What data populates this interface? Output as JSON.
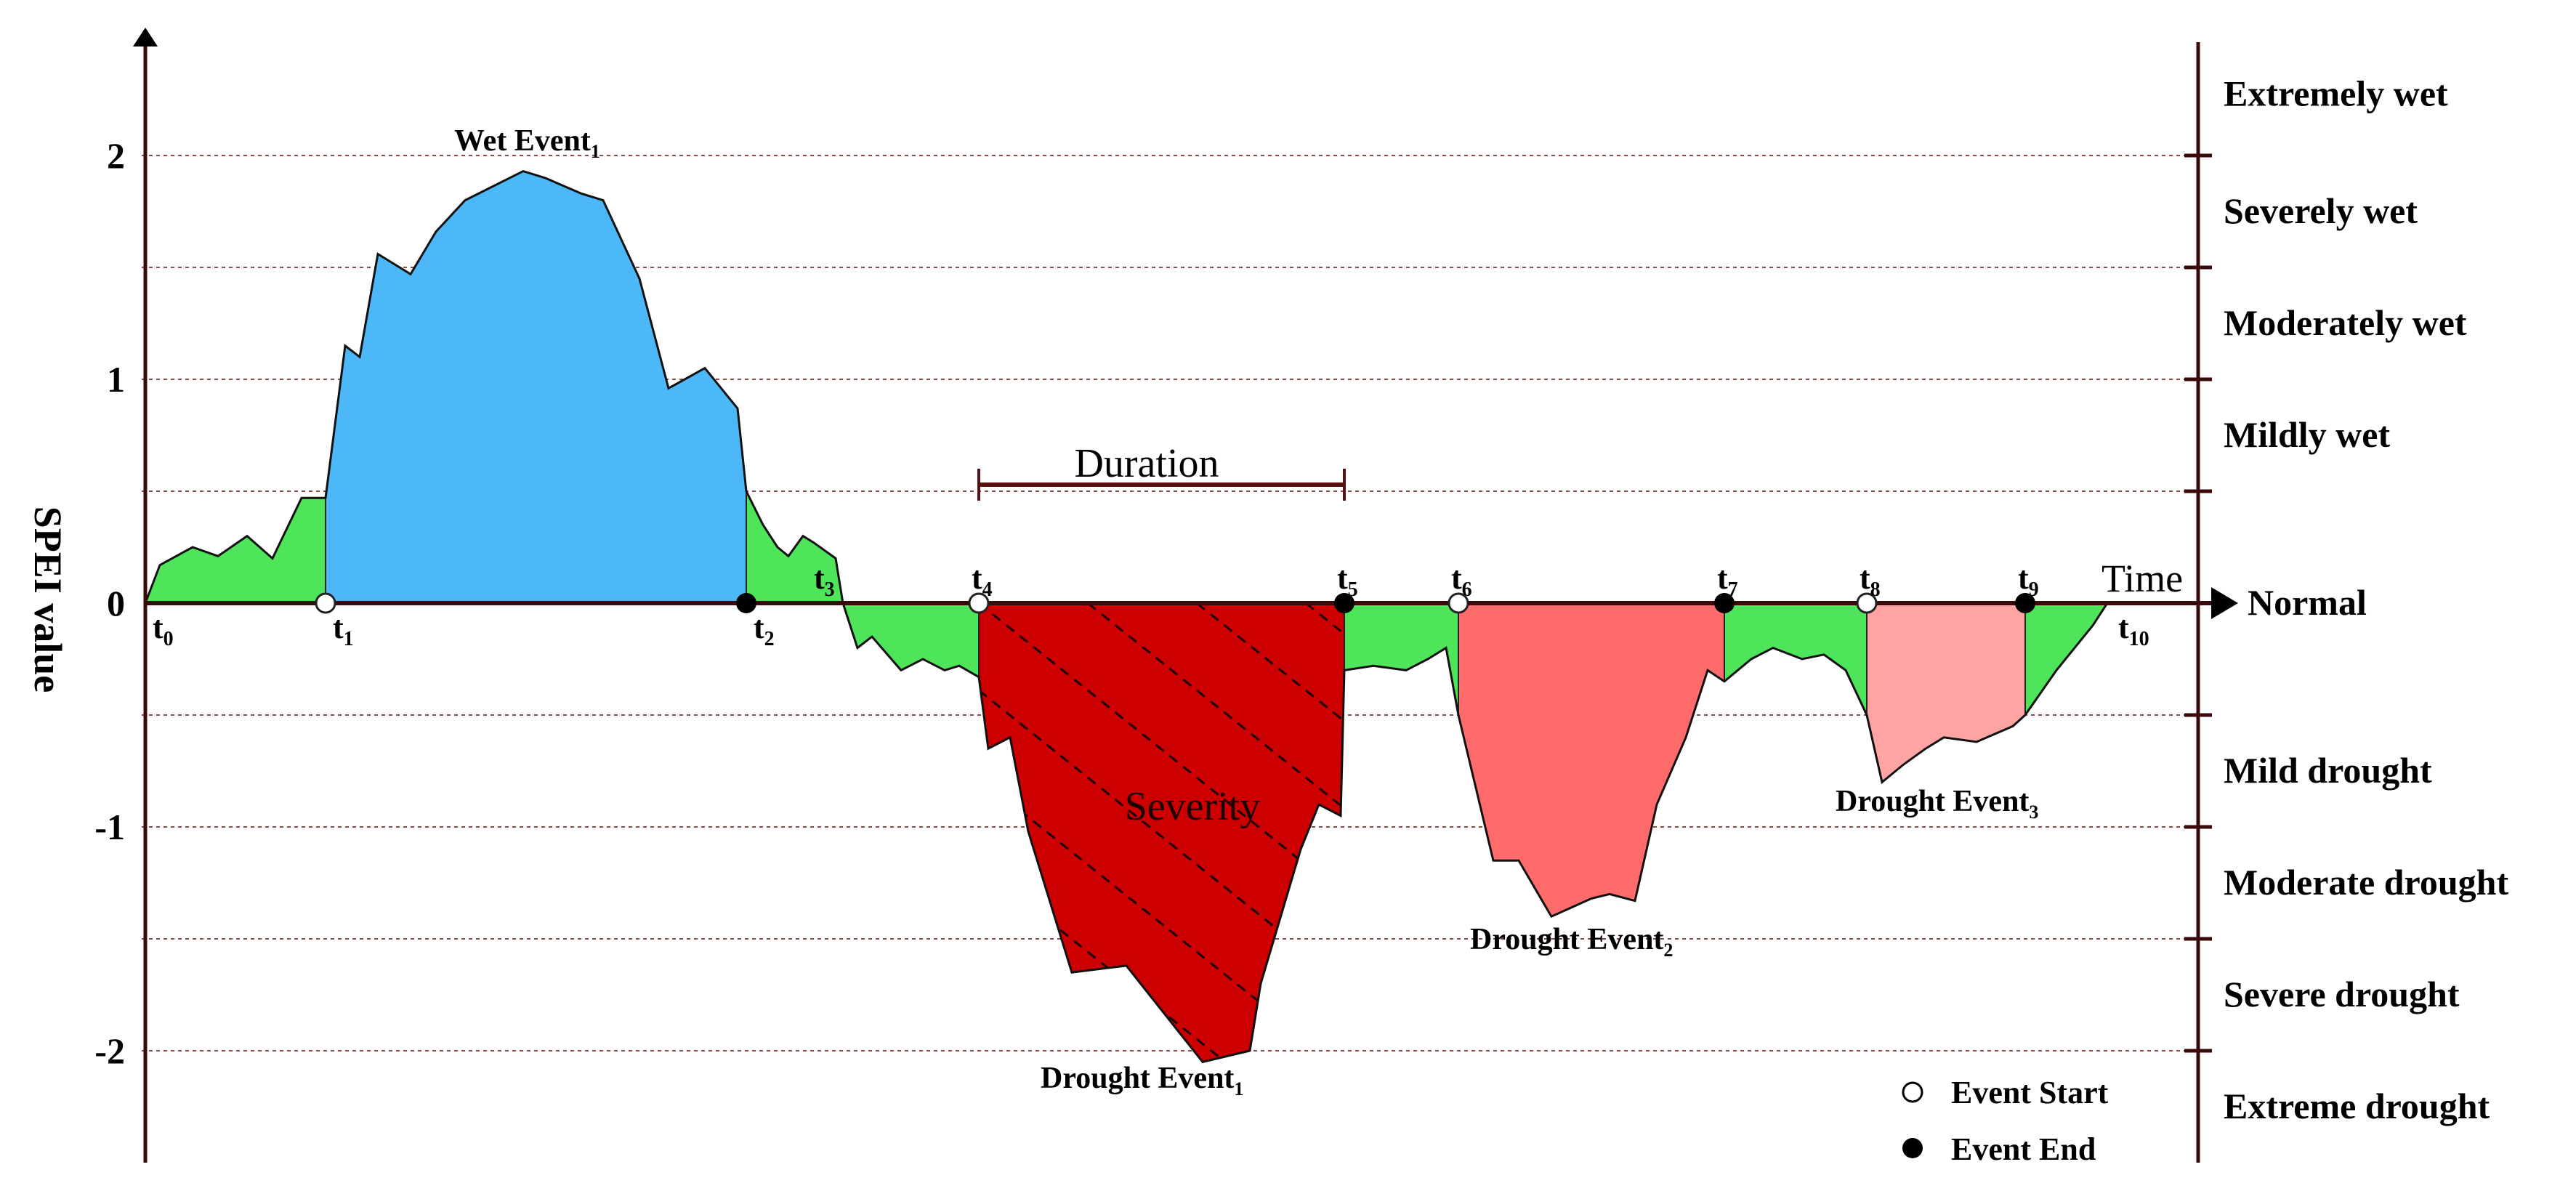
{
  "axis": {
    "ylabel": "SPEI value",
    "xlabel": "Time",
    "yticks": [
      {
        "value": 2,
        "label": "2"
      },
      {
        "value": 1,
        "label": "1"
      },
      {
        "value": 0,
        "label": "0"
      },
      {
        "value": -1,
        "label": "-1"
      },
      {
        "value": -2,
        "label": "-2"
      }
    ],
    "ylim": [
      -2.5,
      2.55
    ],
    "reference_lines": [
      2,
      1.5,
      1,
      0.5,
      -0.5,
      -1,
      -1.5,
      -2
    ]
  },
  "categories": [
    {
      "label": "Extremely wet",
      "lo": 2,
      "hi": 2.55
    },
    {
      "label": "Severely wet",
      "lo": 1.5,
      "hi": 2
    },
    {
      "label": "Moderately wet",
      "lo": 1,
      "hi": 1.5
    },
    {
      "label": "Mildly wet",
      "lo": 0.5,
      "hi": 1
    },
    {
      "label": "Normal",
      "lo": -0.5,
      "hi": 0.5
    },
    {
      "label": "Mild drought",
      "lo": -1,
      "hi": -0.5
    },
    {
      "label": "Moderate drought",
      "lo": -1.5,
      "hi": -1
    },
    {
      "label": "Severe drought",
      "lo": -2,
      "hi": -1.5
    },
    {
      "label": "Extreme drought",
      "lo": -2.5,
      "hi": -2
    }
  ],
  "time_markers": [
    {
      "base": "t",
      "sub": "0",
      "t": 0,
      "marker": "none"
    },
    {
      "base": "t",
      "sub": "1",
      "t": 248,
      "marker": "open"
    },
    {
      "base": "t",
      "sub": "2",
      "t": 827,
      "marker": "filled"
    },
    {
      "base": "t",
      "sub": "3",
      "t": 950,
      "marker": "none"
    },
    {
      "base": "t",
      "sub": "4",
      "t": 1147,
      "marker": "open"
    },
    {
      "base": "t",
      "sub": "5",
      "t": 1650,
      "marker": "filled"
    },
    {
      "base": "t",
      "sub": "6",
      "t": 1807,
      "marker": "open"
    },
    {
      "base": "t",
      "sub": "7",
      "t": 2173,
      "marker": "filled"
    },
    {
      "base": "t",
      "sub": "8",
      "t": 2369,
      "marker": "open"
    },
    {
      "base": "t",
      "sub": "9",
      "t": 2587,
      "marker": "filled"
    },
    {
      "base": "t",
      "sub": "10",
      "t": 2705,
      "marker": "none"
    }
  ],
  "events": [
    {
      "name": "Wet Event",
      "sub": "1",
      "color": "#4db8f8",
      "t_start": 248,
      "t_end": 827
    },
    {
      "name": "Drought Event",
      "sub": "1",
      "color": "#cc0000",
      "t_start": 1147,
      "t_end": 1650,
      "hatched": true
    },
    {
      "name": "Drought Event",
      "sub": "2",
      "color": "#ff6b6b",
      "t_start": 1807,
      "t_end": 2173
    },
    {
      "name": "Drought Event",
      "sub": "3",
      "color": "#ffa3a3",
      "t_start": 2369,
      "t_end": 2587
    }
  ],
  "normal_color": "#4ee55a",
  "annotations": {
    "duration": "Duration",
    "severity": "Severity"
  },
  "legend": {
    "start": "Event Start",
    "end": "Event End"
  },
  "series": {
    "t": [
      0,
      20,
      65,
      100,
      140,
      175,
      215,
      248,
      275,
      295,
      320,
      365,
      400,
      440,
      520,
      550,
      600,
      630,
      680,
      720,
      770,
      795,
      815,
      827,
      850,
      870,
      885,
      905,
      920,
      950,
      960,
      980,
      1000,
      1040,
      1070,
      1100,
      1120,
      1147,
      1160,
      1190,
      1215,
      1275,
      1350,
      1455,
      1520,
      1535,
      1590,
      1615,
      1645,
      1650,
      1690,
      1735,
      1765,
      1790,
      1807,
      1855,
      1890,
      1935,
      1990,
      2015,
      2050,
      2080,
      2120,
      2150,
      2173,
      2210,
      2240,
      2280,
      2310,
      2340,
      2369,
      2390,
      2420,
      2450,
      2475,
      2520,
      2570,
      2587,
      2630,
      2680,
      2700,
      2705
    ],
    "v": [
      0,
      0.17,
      0.25,
      0.21,
      0.3,
      0.2,
      0.47,
      0.47,
      1.15,
      1.1,
      1.56,
      1.47,
      1.66,
      1.8,
      1.93,
      1.9,
      1.83,
      1.8,
      1.45,
      0.96,
      1.05,
      0.95,
      0.87,
      0.5,
      0.35,
      0.25,
      0.21,
      0.3,
      0.27,
      0.2,
      0,
      -0.2,
      -0.15,
      -0.3,
      -0.25,
      -0.3,
      -0.28,
      -0.33,
      -0.65,
      -0.6,
      -1.02,
      -1.65,
      -1.62,
      -2.05,
      -2.0,
      -1.7,
      -1.1,
      -0.9,
      -0.95,
      -0.3,
      -0.28,
      -0.3,
      -0.25,
      -0.2,
      -0.5,
      -1.15,
      -1.15,
      -1.4,
      -1.32,
      -1.3,
      -1.33,
      -0.9,
      -0.6,
      -0.3,
      -0.35,
      -0.25,
      -0.2,
      -0.25,
      -0.23,
      -0.3,
      -0.5,
      -0.8,
      -0.72,
      -0.65,
      -0.6,
      -0.62,
      -0.55,
      -0.5,
      -0.3,
      -0.1,
      0,
      0
    ]
  }
}
